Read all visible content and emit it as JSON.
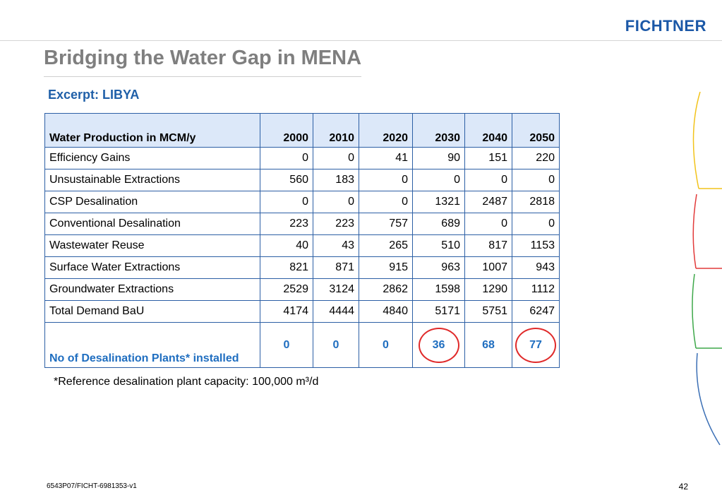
{
  "header": {
    "logo_text": "FICHTNER",
    "title": "Bridging the Water Gap in MENA",
    "subtitle": "Excerpt: LIBYA"
  },
  "table": {
    "columns": [
      "Water Production in MCM/y",
      "2000",
      "2010",
      "2020",
      "2030",
      "2040",
      "2050"
    ],
    "rows": [
      [
        "Efficiency Gains",
        "0",
        "0",
        "41",
        "90",
        "151",
        "220"
      ],
      [
        "Unsustainable Extractions",
        "560",
        "183",
        "0",
        "0",
        "0",
        "0"
      ],
      [
        "CSP Desalination",
        "0",
        "0",
        "0",
        "1321",
        "2487",
        "2818"
      ],
      [
        "Conventional Desalination",
        "223",
        "223",
        "757",
        "689",
        "0",
        "0"
      ],
      [
        "Wastewater Reuse",
        "40",
        "43",
        "265",
        "510",
        "817",
        "1153"
      ],
      [
        "Surface Water Extractions",
        "821",
        "871",
        "915",
        "963",
        "1007",
        "943"
      ],
      [
        "Groundwater Extractions",
        "2529",
        "3124",
        "2862",
        "1598",
        "1290",
        "1112"
      ],
      [
        "Total Demand BaU",
        "4174",
        "4444",
        "4840",
        "5171",
        "5751",
        "6247"
      ]
    ],
    "plants_row": [
      "No of Desalination Plants* installed",
      "0",
      "0",
      "0",
      "36",
      "68",
      "77"
    ],
    "highlighted_years": [
      "2030",
      "2050"
    ]
  },
  "footnote": "*Reference desalination plant capacity: 100,000 m³/d",
  "footer": {
    "doc_id": "6543P07/FICHT-6981353-v1",
    "page_number": "42"
  },
  "colors": {
    "brand": "#1b58a7",
    "title": "#7f7f7f",
    "table_border": "#2c5fa5",
    "header_fill": "#dce8f9",
    "plants_text": "#1f6ec0",
    "highlight_ring": "#e02a2a"
  }
}
